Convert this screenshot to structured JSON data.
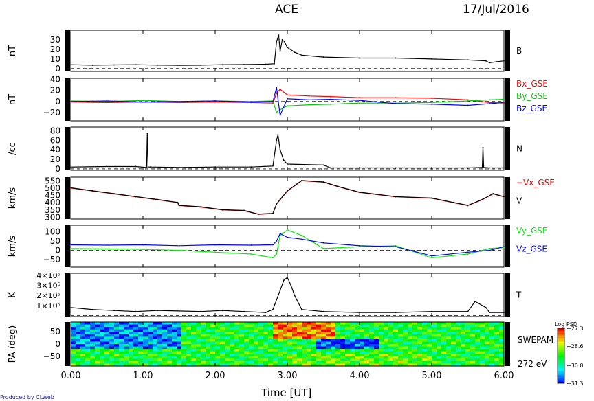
{
  "header": {
    "title": "ACE",
    "date": "17/Jul/2016"
  },
  "credit": "Produced by CLWeb",
  "xaxis": {
    "label": "Time [UT]",
    "ticks": [
      "0.00",
      "1.00",
      "2.00",
      "3.00",
      "4.00",
      "5.00",
      "6.00"
    ],
    "range": [
      0,
      6
    ]
  },
  "chart_data": [
    {
      "type": "line",
      "ylabel": "nT",
      "yticks": [
        "0",
        "10",
        "20",
        "30"
      ],
      "ylim": [
        -3,
        40
      ],
      "dashed_zero": true,
      "series": [
        {
          "name": "B",
          "color": "#000000",
          "x": [
            0,
            0.3,
            0.6,
            0.9,
            1.2,
            1.5,
            1.8,
            2.1,
            2.4,
            2.7,
            2.82,
            2.85,
            2.88,
            2.9,
            2.93,
            2.96,
            3.0,
            3.1,
            3.2,
            3.5,
            4.0,
            4.5,
            5.0,
            5.5,
            5.75,
            5.8,
            5.9,
            6.0
          ],
          "y": [
            4,
            3.5,
            3.8,
            4,
            3.6,
            3.4,
            3.5,
            4,
            4.2,
            4.5,
            5,
            28,
            35,
            18,
            30,
            28,
            22,
            17,
            14,
            12,
            11,
            11,
            10,
            9,
            8,
            6,
            7,
            8
          ]
        }
      ]
    },
    {
      "type": "line",
      "ylabel": "nT",
      "yticks": [
        "−20",
        "0",
        "20",
        "40"
      ],
      "ylim": [
        -35,
        42
      ],
      "dashed_zero": true,
      "series": [
        {
          "name": "Bx_GSE",
          "color": "#ff0000",
          "x": [
            0,
            0.5,
            1,
            1.5,
            2,
            2.5,
            2.8,
            2.85,
            2.9,
            3.0,
            3.3,
            3.6,
            4,
            4.5,
            5,
            5.5,
            5.8,
            6
          ],
          "y": [
            -1,
            -2,
            -1,
            -2,
            -1,
            -2,
            -3,
            15,
            22,
            12,
            10,
            9,
            7,
            7,
            6,
            3,
            -2,
            -3
          ]
        },
        {
          "name": "By_GSE",
          "color": "#00cc00",
          "x": [
            0,
            0.5,
            1,
            1.5,
            2,
            2.5,
            2.8,
            2.85,
            2.9,
            3.0,
            3.3,
            3.6,
            4,
            4.5,
            5,
            5.5,
            5.8,
            6
          ],
          "y": [
            1,
            0,
            2,
            0,
            1,
            0,
            1,
            -20,
            -15,
            -8,
            -6,
            -5,
            -3,
            -3,
            -2,
            1,
            3,
            4
          ]
        },
        {
          "name": "Bz_GSE",
          "color": "#0000ff",
          "x": [
            0,
            0.5,
            1,
            1.5,
            2,
            2.5,
            2.8,
            2.85,
            2.9,
            3.0,
            3.3,
            3.6,
            4,
            4.5,
            5,
            5.5,
            5.8,
            6
          ],
          "y": [
            0,
            1,
            -1,
            0,
            1,
            -1,
            0,
            25,
            -25,
            5,
            3,
            4,
            2,
            -4,
            -5,
            -7,
            -4,
            -2
          ]
        }
      ]
    },
    {
      "type": "line",
      "ylabel": "/cc",
      "yticks": [
        "0",
        "20",
        "40",
        "60",
        "80"
      ],
      "ylim": [
        -3,
        88
      ],
      "dashed_zero": true,
      "series": [
        {
          "name": "N",
          "color": "#000000",
          "x": [
            0,
            0.5,
            0.9,
            1.05,
            1.06,
            1.07,
            1.1,
            1.5,
            2.0,
            2.5,
            2.8,
            2.85,
            2.87,
            2.9,
            2.95,
            3.0,
            3.5,
            3.6,
            4,
            4.5,
            5,
            5.5,
            5.7,
            5.71,
            5.72,
            5.8,
            6
          ],
          "y": [
            4,
            5,
            5,
            3,
            75,
            4,
            4,
            3,
            4,
            4,
            6,
            60,
            72,
            40,
            18,
            10,
            8,
            2,
            2,
            2,
            2,
            2,
            3,
            45,
            3,
            2,
            2
          ]
        }
      ]
    },
    {
      "type": "line",
      "ylabel": "km/s",
      "yticks": [
        "300",
        "350",
        "400",
        "450",
        "500",
        "550"
      ],
      "ylim": [
        288,
        575
      ],
      "dashed_zero": false,
      "series": [
        {
          "name": "−Vx_GSE",
          "color": "#ff0000",
          "x": [
            0,
            0.3,
            0.6,
            0.9,
            1.2,
            1.48,
            1.5,
            1.8,
            2.1,
            2.4,
            2.6,
            2.8,
            2.85,
            2.9,
            3.0,
            3.2,
            3.5,
            3.7,
            4.0,
            4.5,
            5.0,
            5.3,
            5.5,
            5.7,
            5.85,
            6.0
          ],
          "y": [
            500,
            480,
            460,
            440,
            420,
            400,
            380,
            370,
            350,
            345,
            320,
            325,
            390,
            420,
            480,
            550,
            540,
            510,
            470,
            440,
            430,
            400,
            380,
            420,
            460,
            440
          ]
        },
        {
          "name": "V",
          "color": "#000000",
          "x": [
            0,
            0.3,
            0.6,
            0.9,
            1.2,
            1.48,
            1.5,
            1.8,
            2.1,
            2.4,
            2.6,
            2.8,
            2.85,
            2.9,
            3.0,
            3.2,
            3.5,
            3.7,
            4.0,
            4.5,
            5.0,
            5.3,
            5.5,
            5.7,
            5.85,
            6.0
          ],
          "y": [
            502,
            482,
            462,
            442,
            422,
            402,
            382,
            372,
            352,
            347,
            322,
            327,
            392,
            422,
            482,
            552,
            542,
            512,
            472,
            442,
            432,
            402,
            382,
            422,
            462,
            442
          ]
        }
      ]
    },
    {
      "type": "line",
      "ylabel": "km/s",
      "yticks": [
        "−50",
        "0",
        "50",
        "100"
      ],
      "ylim": [
        -90,
        135
      ],
      "dashed_zero": true,
      "series": [
        {
          "name": "Vy_GSE",
          "color": "#00ee00",
          "x": [
            0,
            0.5,
            1,
            1.5,
            2,
            2.5,
            2.8,
            2.85,
            2.9,
            3.0,
            3.2,
            3.5,
            4,
            4.5,
            5,
            5.5,
            5.8,
            6
          ],
          "y": [
            10,
            8,
            5,
            0,
            -10,
            -20,
            -40,
            -20,
            80,
            110,
            80,
            10,
            20,
            25,
            -40,
            -20,
            10,
            15
          ]
        },
        {
          "name": "Vz_GSE",
          "color": "#0000ff",
          "x": [
            0,
            0.5,
            1,
            1.5,
            2,
            2.5,
            2.8,
            2.85,
            2.9,
            3.0,
            3.2,
            3.5,
            4,
            4.5,
            5,
            5.5,
            5.8,
            6
          ],
          "y": [
            30,
            28,
            30,
            25,
            30,
            28,
            30,
            50,
            90,
            70,
            60,
            40,
            25,
            20,
            -30,
            -10,
            0,
            20
          ]
        }
      ]
    },
    {
      "type": "line",
      "ylabel": "K",
      "yticks": [
        "1×10⁵",
        "2×10⁵",
        "3×10⁵",
        "4×10⁵"
      ],
      "ytick_values": [
        100000,
        200000,
        300000,
        400000
      ],
      "ylim": [
        -10000,
        420000
      ],
      "dashed_zero": true,
      "series": [
        {
          "name": "T",
          "color": "#000000",
          "x": [
            0,
            0.3,
            0.6,
            0.9,
            1.2,
            1.5,
            1.8,
            2.1,
            2.4,
            2.7,
            2.8,
            2.9,
            2.95,
            3.0,
            3.05,
            3.1,
            3.2,
            3.5,
            4,
            4.5,
            5,
            5.5,
            5.6,
            5.75,
            5.8,
            6
          ],
          "y": [
            80000,
            60000,
            50000,
            40000,
            50000,
            45000,
            40000,
            50000,
            40000,
            30000,
            60000,
            250000,
            350000,
            380000,
            300000,
            200000,
            60000,
            40000,
            30000,
            30000,
            40000,
            40000,
            140000,
            80000,
            30000,
            30000
          ]
        }
      ]
    },
    {
      "type": "heatmap",
      "ylabel": "PA (deg)",
      "yticks": [
        "−50",
        "0",
        "50"
      ],
      "ylim": [
        -90,
        90
      ],
      "label_right": [
        "SWEPAM",
        "272 eV"
      ],
      "colorbar": {
        "title": "Log PSD",
        "ticks": [
          "−27.3",
          "−28.6",
          "−30.0",
          "−31.3"
        ],
        "range": [
          -31.3,
          -27.3
        ]
      }
    }
  ]
}
